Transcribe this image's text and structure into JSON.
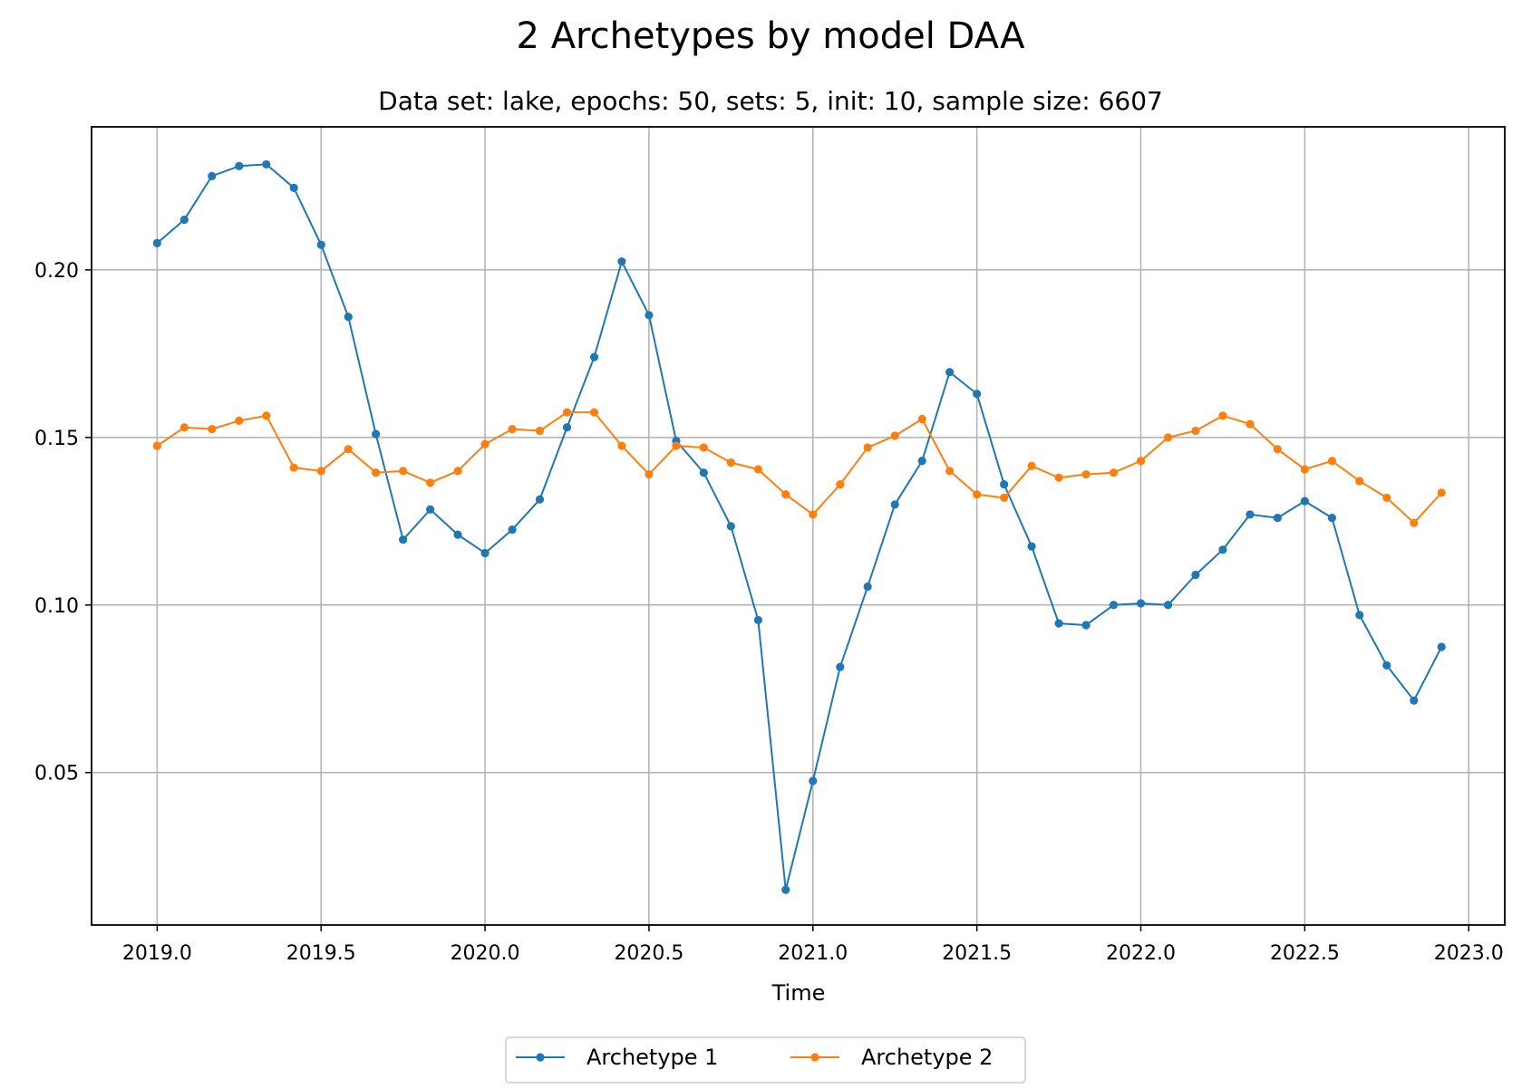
{
  "chart_data": {
    "type": "line",
    "title": "2 Archetypes by model DAA",
    "subtitle": "Data set: lake, epochs: 50, sets: 5, init: 10, sample size: 6607",
    "xlabel": "Time",
    "ylabel": "",
    "xlim": [
      2018.8,
      2023.11
    ],
    "ylim": [
      0.0045,
      0.2427
    ],
    "x_ticks": [
      2019.0,
      2019.5,
      2020.0,
      2020.5,
      2021.0,
      2021.5,
      2022.0,
      2022.5,
      2023.0
    ],
    "x_tick_labels": [
      "2019.0",
      "2019.5",
      "2020.0",
      "2020.5",
      "2021.0",
      "2021.5",
      "2022.0",
      "2022.5",
      "2023.0"
    ],
    "y_ticks": [
      0.05,
      0.1,
      0.15,
      0.2
    ],
    "y_tick_labels": [
      "0.05",
      "0.10",
      "0.15",
      "0.20"
    ],
    "grid": true,
    "legend_position": "bottom-center",
    "x": [
      2019.0,
      2019.083,
      2019.167,
      2019.25,
      2019.333,
      2019.417,
      2019.5,
      2019.583,
      2019.667,
      2019.75,
      2019.833,
      2019.917,
      2020.0,
      2020.083,
      2020.167,
      2020.25,
      2020.333,
      2020.417,
      2020.5,
      2020.583,
      2020.667,
      2020.75,
      2020.833,
      2020.917,
      2021.0,
      2021.083,
      2021.167,
      2021.25,
      2021.333,
      2021.417,
      2021.5,
      2021.583,
      2021.667,
      2021.75,
      2021.833,
      2021.917,
      2022.0,
      2022.083,
      2022.167,
      2022.25,
      2022.333,
      2022.417,
      2022.5,
      2022.583,
      2022.667,
      2022.75,
      2022.833,
      2022.917
    ],
    "series": [
      {
        "name": "Archetype 1",
        "color": "#1f77b4",
        "values": [
          0.208,
          0.215,
          0.228,
          0.231,
          0.2315,
          0.2245,
          0.2075,
          0.186,
          0.151,
          0.1195,
          0.1285,
          0.121,
          0.1155,
          0.1225,
          0.1315,
          0.153,
          0.174,
          0.2025,
          0.1865,
          0.149,
          0.1395,
          0.1235,
          0.0955,
          0.015,
          0.0475,
          0.0815,
          0.1055,
          0.13,
          0.143,
          0.1695,
          0.163,
          0.136,
          0.1175,
          0.0945,
          0.094,
          0.1,
          0.1005,
          0.1,
          0.109,
          0.1165,
          0.127,
          0.126,
          0.131,
          0.126,
          0.097,
          0.082,
          0.0715,
          0.0875
        ]
      },
      {
        "name": "Archetype 2",
        "color": "#ff7f0e",
        "values": [
          0.1475,
          0.153,
          0.1525,
          0.155,
          0.1565,
          0.141,
          0.14,
          0.1465,
          0.1395,
          0.14,
          0.1365,
          0.14,
          0.148,
          0.1525,
          0.152,
          0.1575,
          0.1575,
          0.1475,
          0.139,
          0.1475,
          0.147,
          0.1425,
          0.1405,
          0.133,
          0.127,
          0.136,
          0.147,
          0.1505,
          0.1555,
          0.14,
          0.133,
          0.132,
          0.1415,
          0.138,
          0.139,
          0.1395,
          0.143,
          0.15,
          0.152,
          0.1565,
          0.154,
          0.1465,
          0.1405,
          0.143,
          0.137,
          0.132,
          0.1245,
          0.1335
        ]
      }
    ]
  }
}
